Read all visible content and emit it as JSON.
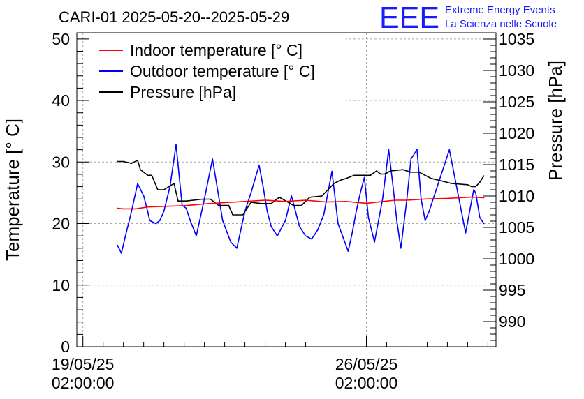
{
  "chart_data": {
    "type": "line",
    "title": "CARI-01 2025-05-20--2025-05-29",
    "ylabel": "Temperature [° C]",
    "y2label": "Pressure [hPa]",
    "xlabel": "",
    "ylim": [
      0,
      51
    ],
    "y2lim": [
      986,
      1036
    ],
    "xlim_days": [
      -0.15,
      10.2
    ],
    "yticks": [
      0,
      10,
      20,
      30,
      40,
      50
    ],
    "y2ticks": [
      990,
      995,
      1000,
      1005,
      1010,
      1015,
      1020,
      1025,
      1030,
      1035
    ],
    "xticks": [
      {
        "day": 0,
        "date": "19/05/25",
        "time": "02:00:00"
      },
      {
        "day": 7,
        "date": "26/05/25",
        "time": "02:00:00"
      }
    ],
    "grid": true,
    "legend_position": "top-left",
    "series": [
      {
        "name": "Indoor temperature [° C]",
        "color": "#ff0000",
        "axis": "left",
        "x": [
          0.85,
          1.0,
          1.3,
          1.6,
          2.0,
          2.5,
          3.0,
          3.5,
          4.0,
          4.5,
          5.0,
          5.5,
          6.0,
          6.5,
          7.0,
          7.3,
          7.7,
          8.0,
          8.5,
          9.0,
          9.3,
          9.6,
          9.9
        ],
        "values": [
          22.5,
          22.4,
          22.4,
          22.7,
          22.8,
          22.9,
          23.2,
          23.4,
          23.6,
          23.8,
          23.6,
          23.8,
          23.5,
          23.6,
          23.3,
          23.5,
          23.8,
          23.8,
          24.0,
          24.1,
          24.2,
          24.3,
          24.2
        ]
      },
      {
        "name": "Outdoor temperature [° C]",
        "color": "#0000ff",
        "axis": "left",
        "x": [
          0.85,
          0.95,
          1.05,
          1.2,
          1.35,
          1.5,
          1.6,
          1.65,
          1.8,
          1.9,
          2.0,
          2.15,
          2.3,
          2.45,
          2.55,
          2.65,
          2.8,
          3.0,
          3.2,
          3.45,
          3.65,
          3.8,
          4.0,
          4.15,
          4.35,
          4.45,
          4.55,
          4.65,
          4.8,
          5.0,
          5.15,
          5.35,
          5.5,
          5.65,
          5.8,
          5.95,
          6.05,
          6.15,
          6.3,
          6.55,
          6.65,
          6.75,
          6.85,
          6.95,
          7.05,
          7.2,
          7.4,
          7.55,
          7.65,
          7.75,
          7.85,
          8.0,
          8.1,
          8.25,
          8.35,
          8.45,
          8.55,
          9.05,
          9.45,
          9.55,
          9.65,
          9.7,
          9.8,
          9.9
        ],
        "values": [
          16.5,
          15.2,
          18.0,
          22.0,
          26.5,
          24.5,
          22.0,
          20.5,
          20.0,
          20.5,
          22.0,
          26.0,
          32.8,
          23.0,
          22.5,
          20.5,
          18.0,
          24.0,
          30.5,
          20.5,
          17.0,
          16.0,
          22.0,
          25.0,
          29.5,
          26.0,
          22.0,
          19.5,
          18.0,
          20.5,
          24.5,
          19.5,
          18.0,
          17.5,
          19.0,
          21.5,
          25.0,
          28.5,
          20.0,
          15.5,
          18.5,
          22.0,
          25.0,
          27.5,
          21.0,
          17.0,
          24.0,
          32.0,
          26.5,
          20.5,
          16.0,
          24.0,
          30.5,
          32.0,
          24.0,
          20.5,
          22.0,
          32.0,
          18.5,
          22.0,
          25.5,
          25.0,
          21.0,
          20.0
        ]
      },
      {
        "name": "Pressure [hPa]",
        "color": "#000000",
        "axis": "right",
        "x": [
          0.85,
          1.0,
          1.2,
          1.35,
          1.42,
          1.6,
          1.7,
          1.85,
          2.0,
          2.25,
          2.35,
          2.55,
          2.95,
          3.15,
          3.35,
          3.6,
          3.7,
          3.95,
          4.15,
          4.4,
          4.65,
          4.85,
          5.2,
          5.4,
          5.6,
          5.9,
          6.2,
          6.35,
          6.5,
          6.7,
          6.85,
          7.1,
          7.25,
          7.35,
          7.45,
          7.6,
          7.9,
          8.1,
          8.3,
          8.6,
          8.8,
          9.1,
          9.5,
          9.6,
          9.7,
          9.8,
          9.9
        ],
        "values": [
          1015.5,
          1015.5,
          1015.2,
          1015.7,
          1014.2,
          1013.3,
          1013.3,
          1011.0,
          1011.0,
          1012.0,
          1009.2,
          1009.2,
          1009.5,
          1009.5,
          1008.5,
          1008.5,
          1007.0,
          1007.0,
          1009.0,
          1008.8,
          1008.8,
          1009.8,
          1008.5,
          1008.5,
          1009.8,
          1010.0,
          1012.0,
          1012.5,
          1012.8,
          1013.3,
          1013.3,
          1013.3,
          1014.0,
          1013.5,
          1013.5,
          1014.0,
          1014.2,
          1013.8,
          1013.8,
          1012.8,
          1012.5,
          1012.0,
          1011.8,
          1011.5,
          1011.5,
          1012.2,
          1013.2
        ]
      }
    ]
  },
  "branding": {
    "logo": "EEE",
    "line1": "Extreme Energy Events",
    "line2": "La Scienza nelle Scuole"
  }
}
